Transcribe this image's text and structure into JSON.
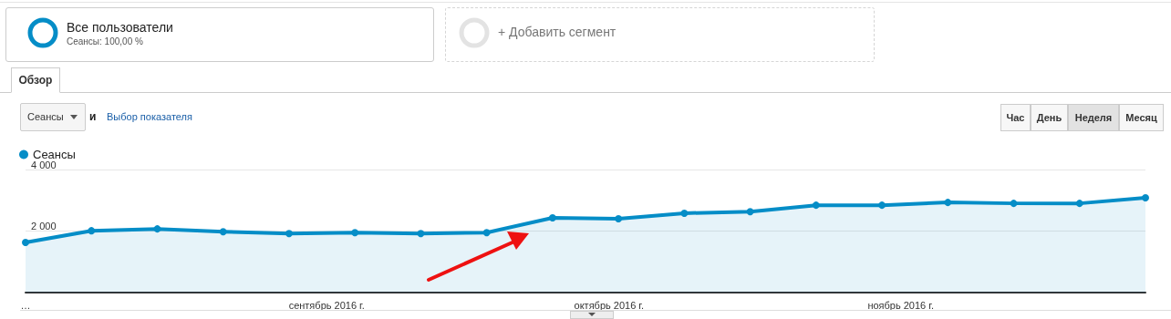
{
  "chart_data": {
    "type": "area",
    "x": [
      "2016-07-31",
      "2016-08-07",
      "2016-08-14",
      "2016-08-21",
      "2016-08-28",
      "2016-09-04",
      "2016-09-11",
      "2016-09-18",
      "2016-09-25",
      "2016-10-02",
      "2016-10-09",
      "2016-10-16",
      "2016-10-23",
      "2016-10-30",
      "2016-11-06",
      "2016-11-13",
      "2016-11-20",
      "2016-11-27"
    ],
    "series": [
      {
        "name": "Сеансы",
        "color": "#058dc7",
        "values": [
          1630,
          2010,
          2070,
          1980,
          1920,
          1950,
          1920,
          1950,
          2430,
          2400,
          2580,
          2630,
          2840,
          2840,
          2930,
          2900,
          2900,
          3080
        ]
      }
    ],
    "xlim": [
      "2016-07-31",
      "2016-11-27"
    ],
    "xticks": [
      {
        "value": "2016-07-31",
        "label": "…"
      },
      {
        "value": "2016-09-01",
        "label": "сентябрь 2016 г."
      },
      {
        "value": "2016-10-01",
        "label": "октябрь 2016 г."
      },
      {
        "value": "2016-11-01",
        "label": "ноябрь 2016 г."
      }
    ],
    "ylim": [
      0,
      4000
    ],
    "yticks": [
      {
        "value": 2000,
        "label": "2 000"
      },
      {
        "value": 4000,
        "label": "4 000"
      }
    ],
    "grid": "y",
    "legend": "top left",
    "marker": "circle",
    "line_style": "solid",
    "annotations": [
      "Все пользователи",
      "Сеансы: 100,00 %",
      "+ Добавить сегмент",
      "Обзор",
      "Сеансы",
      "и",
      "Выбор показателя",
      "Час",
      "День",
      "Неделя",
      "Месяц"
    ]
  }
}
